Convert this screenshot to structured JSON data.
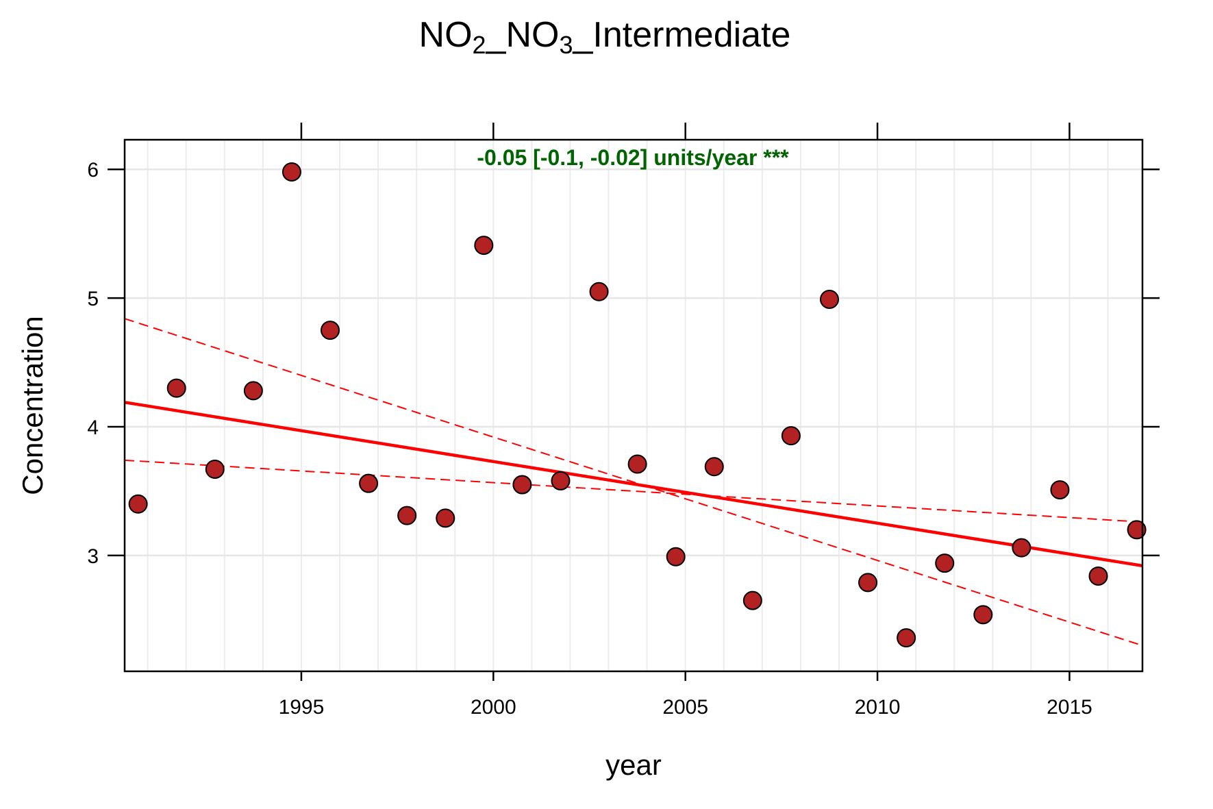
{
  "chart_data": {
    "type": "scatter",
    "title": {
      "parts": [
        {
          "text": "NO",
          "sub": false
        },
        {
          "text": "2",
          "sub": true
        },
        {
          "text": "_NO",
          "sub": false
        },
        {
          "text": "3",
          "sub": true
        },
        {
          "text": "_Intermediate",
          "sub": false
        }
      ]
    },
    "xlabel": "year",
    "ylabel": "Concentration",
    "xlim": [
      1990.4,
      2016.9
    ],
    "ylim": [
      2.1,
      6.23
    ],
    "x_ticks": [
      1995,
      2000,
      2005,
      2010,
      2015
    ],
    "y_ticks": [
      3,
      4,
      5,
      6
    ],
    "grid": true,
    "annotation": {
      "text": "-0.05 [-0.1, -0.02] units/year ***",
      "color": "#006400"
    },
    "points": {
      "fill": "#b22222",
      "stroke": "#000000",
      "x": [
        1990.75,
        1991.75,
        1992.75,
        1993.75,
        1994.75,
        1995.75,
        1996.75,
        1997.75,
        1998.75,
        1999.75,
        2000.75,
        2001.75,
        2002.75,
        2003.75,
        2004.75,
        2005.75,
        2006.75,
        2007.75,
        2008.75,
        2009.75,
        2010.75,
        2011.75,
        2012.75,
        2013.75,
        2014.75,
        2015.75,
        2016.75
      ],
      "y": [
        3.4,
        4.3,
        3.67,
        4.28,
        5.98,
        4.75,
        3.56,
        3.31,
        3.29,
        5.41,
        3.55,
        3.58,
        5.05,
        3.71,
        2.99,
        3.69,
        2.65,
        3.93,
        4.99,
        2.79,
        2.36,
        2.94,
        2.54,
        3.06,
        3.51,
        2.84,
        3.2
      ]
    },
    "trend": {
      "color": "#ff0000",
      "x": [
        1990.4,
        2016.9
      ],
      "y": [
        4.19,
        2.92
      ]
    },
    "confidence_bands": [
      {
        "color": "#ff0000",
        "x": [
          1990.4,
          2016.9
        ],
        "y": [
          4.84,
          2.3
        ]
      },
      {
        "color": "#ff0000",
        "x": [
          1990.4,
          2016.9
        ],
        "y": [
          3.74,
          3.26
        ]
      }
    ]
  }
}
